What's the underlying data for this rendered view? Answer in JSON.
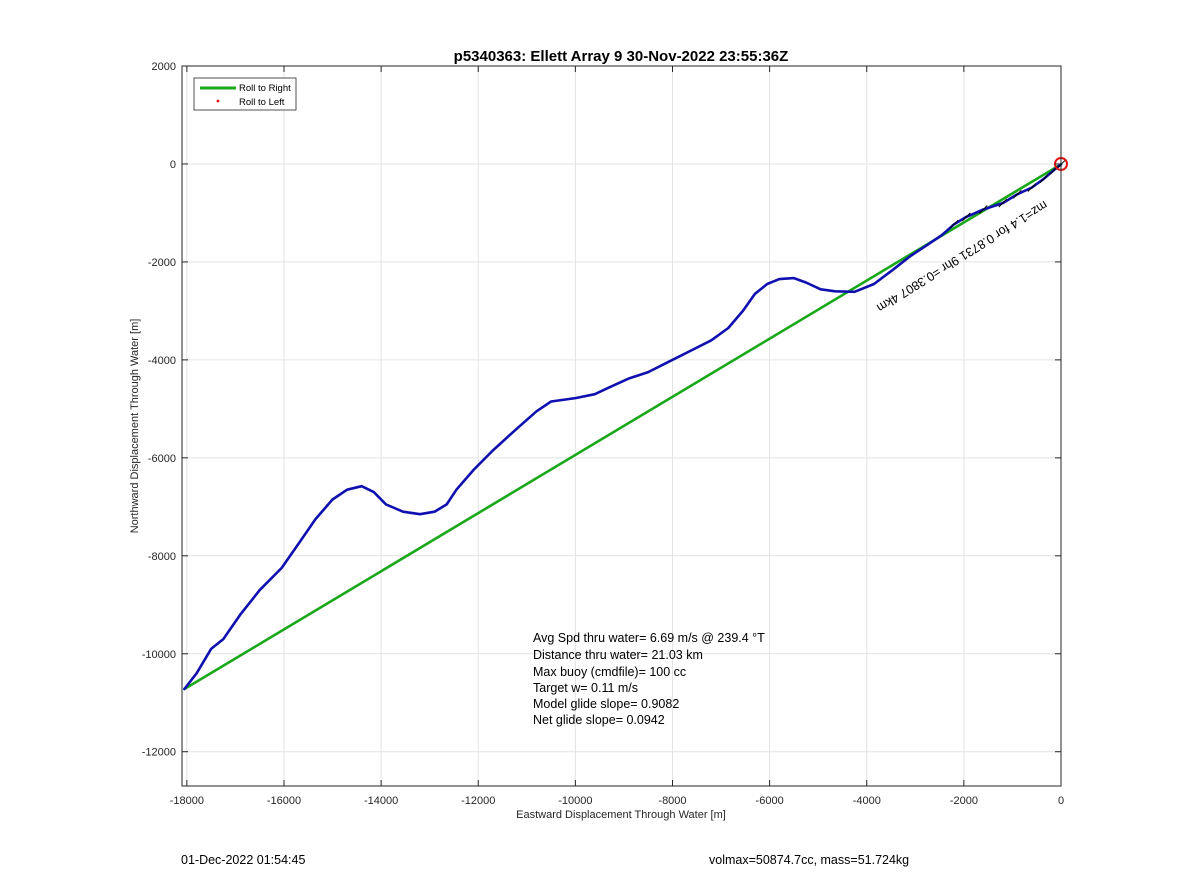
{
  "chart_data": {
    "type": "line",
    "title": "p5340363: Ellett Array 9 30-Nov-2022 23:55:36Z",
    "xlabel": "Eastward Displacement Through Water [m]",
    "ylabel": "Northward Displacement Through Water [m]",
    "xlim": [
      -18100,
      0
    ],
    "ylim": [
      -12700,
      2000
    ],
    "xticks": [
      -18000,
      -16000,
      -14000,
      -12000,
      -10000,
      -8000,
      -6000,
      -4000,
      -2000,
      0
    ],
    "yticks": [
      2000,
      0,
      -2000,
      -4000,
      -6000,
      -8000,
      -10000,
      -12000
    ],
    "xtick_labels": [
      "-18000",
      "-16000",
      "-14000",
      "-12000",
      "-10000",
      "-8000",
      "-6000",
      "-4000",
      "-2000",
      "0"
    ],
    "ytick_labels": [
      "2000",
      "0",
      "-2000",
      "-4000",
      "-6000",
      "-8000",
      "-10000",
      "-12000"
    ],
    "grid": true,
    "legend_position": "top-left",
    "legend": [
      {
        "label": "Roll to Right",
        "color": "#1aa81a",
        "style": "line"
      },
      {
        "label": "Roll to Left",
        "color": "#e01010",
        "style": "dot"
      }
    ],
    "series": [
      {
        "name": "Roll to Right",
        "color": "#1aa81a",
        "points": [
          [
            -18050,
            -10720
          ],
          [
            -2300,
            -1370
          ],
          [
            0,
            -10
          ]
        ]
      },
      {
        "color": "#1010b0",
        "points": [
          [
            -18050,
            -10720
          ],
          [
            -17800,
            -10400
          ],
          [
            -17500,
            -9900
          ],
          [
            -17250,
            -9700
          ],
          [
            -16900,
            -9200
          ],
          [
            -16500,
            -8700
          ],
          [
            -16050,
            -8250
          ],
          [
            -15700,
            -7750
          ],
          [
            -15350,
            -7250
          ],
          [
            -15000,
            -6850
          ],
          [
            -14700,
            -6650
          ],
          [
            -14400,
            -6580
          ],
          [
            -14150,
            -6700
          ],
          [
            -13900,
            -6950
          ],
          [
            -13550,
            -7100
          ],
          [
            -13200,
            -7150
          ],
          [
            -12900,
            -7100
          ],
          [
            -12650,
            -6950
          ],
          [
            -12450,
            -6650
          ],
          [
            -12100,
            -6250
          ],
          [
            -11700,
            -5850
          ],
          [
            -11200,
            -5400
          ],
          [
            -10800,
            -5050
          ],
          [
            -10500,
            -4850
          ],
          [
            -10000,
            -4780
          ],
          [
            -9600,
            -4700
          ],
          [
            -9300,
            -4560
          ],
          [
            -8900,
            -4380
          ],
          [
            -8500,
            -4250
          ],
          [
            -8100,
            -4050
          ],
          [
            -7600,
            -3800
          ],
          [
            -7200,
            -3600
          ],
          [
            -6850,
            -3350
          ],
          [
            -6550,
            -3000
          ],
          [
            -6300,
            -2650
          ],
          [
            -6050,
            -2450
          ],
          [
            -5800,
            -2350
          ],
          [
            -5500,
            -2330
          ],
          [
            -5250,
            -2420
          ],
          [
            -4950,
            -2560
          ],
          [
            -4650,
            -2600
          ],
          [
            -4250,
            -2610
          ],
          [
            -3850,
            -2450
          ],
          [
            -3450,
            -2150
          ],
          [
            -3100,
            -1880
          ],
          [
            -2750,
            -1650
          ],
          [
            -2450,
            -1450
          ],
          [
            -2200,
            -1230
          ],
          [
            -1950,
            -1080
          ],
          [
            -1600,
            -930
          ],
          [
            -1200,
            -800
          ],
          [
            -900,
            -620
          ],
          [
            -600,
            -480
          ],
          [
            -350,
            -300
          ],
          [
            -150,
            -130
          ],
          [
            0,
            -10
          ]
        ]
      }
    ],
    "segment_label": "mz=1.4 for 0.8731 9hr =0.3807 4km",
    "end_marker": {
      "x": 0,
      "y": 0,
      "color": "#e01010"
    },
    "annotations": [
      "Avg Spd thru water=  6.69 m/s @ 239.4 °T",
      "Distance thru water= 21.03 km",
      "Max buoy (cmdfile)= 100 cc",
      "Target w= 0.11 m/s",
      "Model glide slope= 0.9082",
      "Net glide slope= 0.0942"
    ]
  },
  "footer": {
    "left": "01-Dec-2022 01:54:45",
    "right": "volmax=50874.7cc, mass=51.724kg"
  }
}
